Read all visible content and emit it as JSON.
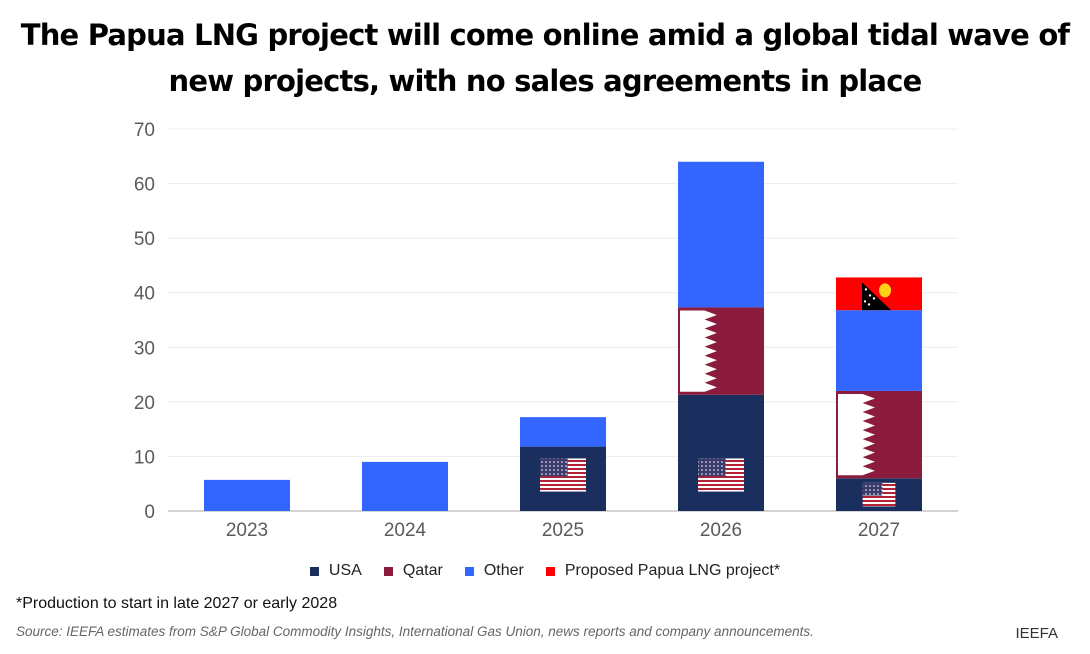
{
  "chart_data": {
    "type": "bar",
    "stacked": true,
    "title": "The Papua LNG project will come online amid a global tidal wave of new projects, with no sales agreements in place",
    "xlabel": "",
    "ylabel": "",
    "ylim": [
      0,
      70
    ],
    "yticks": [
      0,
      10,
      20,
      30,
      40,
      50,
      60,
      70
    ],
    "grid": true,
    "legend_position": "bottom-center",
    "categories": [
      "2023",
      "2024",
      "2025",
      "2026",
      "2027"
    ],
    "series": [
      {
        "name": "USA",
        "color": "#1b2f5e",
        "values": [
          0,
          0,
          11.8,
          21.3,
          6.0
        ],
        "flag": "usa-flag"
      },
      {
        "name": "Qatar",
        "color": "#8b1c3e",
        "values": [
          0,
          0,
          0,
          16.0,
          16.0
        ],
        "flag": "qatar-flag"
      },
      {
        "name": "Other",
        "color": "#3366ff",
        "values": [
          5.7,
          9.0,
          5.4,
          26.7,
          14.8
        ],
        "flag": null
      },
      {
        "name": "Proposed Papua LNG project*",
        "color": "#ff0000",
        "values": [
          0,
          0,
          0,
          0,
          6.0
        ],
        "flag": "png-flag"
      }
    ]
  },
  "footnote": "*Production to start in late 2027 or early 2028",
  "source": "Source: IEEFA estimates from S&P Global Commodity Insights, International Gas Union, news reports and company announcements.",
  "brand": "IEEFA"
}
